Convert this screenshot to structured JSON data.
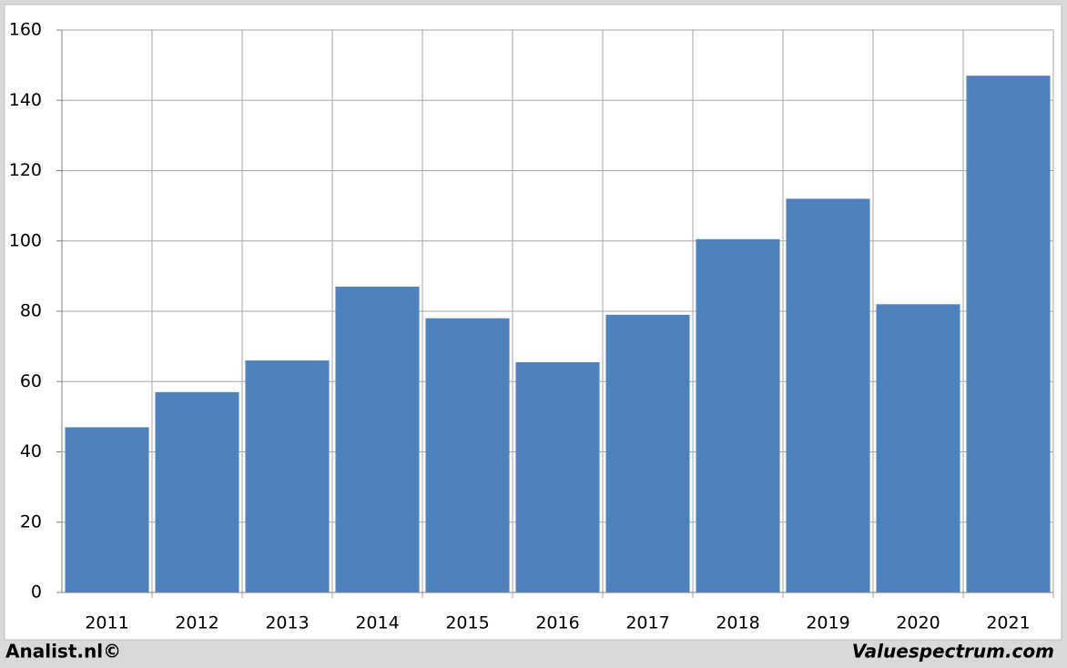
{
  "chart_data": {
    "type": "bar",
    "categories": [
      "2011",
      "2012",
      "2013",
      "2014",
      "2015",
      "2016",
      "2017",
      "2018",
      "2019",
      "2020",
      "2021"
    ],
    "values": [
      47,
      57,
      66,
      87,
      78,
      65.5,
      79,
      100.5,
      112,
      82,
      147
    ],
    "color": "#4f81bd",
    "ylim": [
      0,
      160
    ],
    "yticks": [
      0,
      20,
      40,
      60,
      80,
      100,
      120,
      140,
      160
    ],
    "grid": true,
    "credits": [
      "Analist.nl©",
      "Valuespectrum.com"
    ]
  }
}
